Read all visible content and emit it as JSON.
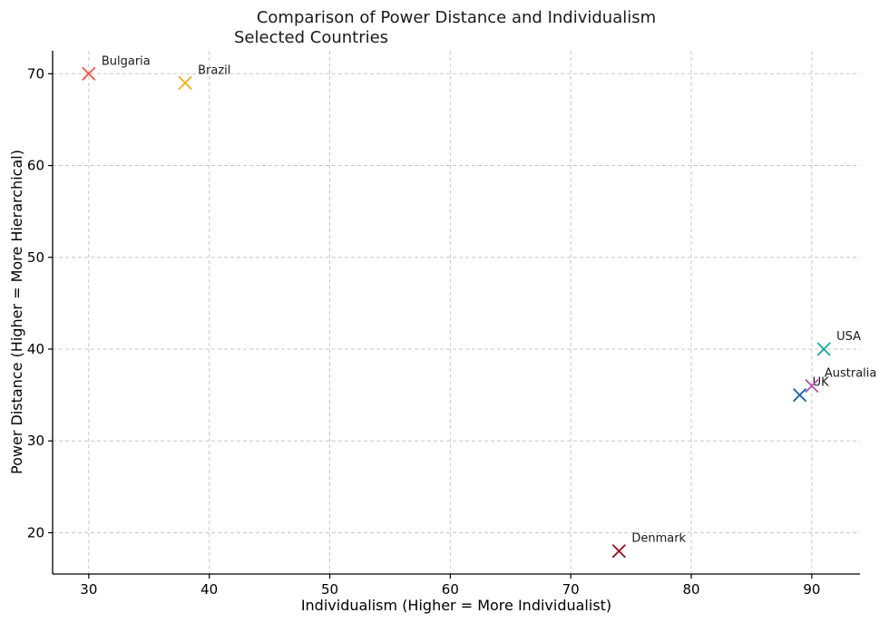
{
  "chart_data": {
    "type": "scatter",
    "title": "Comparison of Power Distance and Individualism",
    "subtitle": "Selected Countries",
    "xlabel": "Individualism (Higher = More Individualist)",
    "ylabel": "Power Distance (Higher = More Hierarchical)",
    "xlim": [
      27,
      94
    ],
    "ylim": [
      15.5,
      72.5
    ],
    "xticks": [
      30,
      40,
      50,
      60,
      70,
      80,
      90
    ],
    "yticks": [
      20,
      30,
      40,
      50,
      60,
      70
    ],
    "grid": true,
    "marker": "x",
    "points": [
      {
        "label": "Bulgaria",
        "x": 30,
        "y": 70,
        "color": "#f4584a"
      },
      {
        "label": "Brazil",
        "x": 38,
        "y": 69,
        "color": "#f0b21c"
      },
      {
        "label": "Denmark",
        "x": 74,
        "y": 18,
        "color": "#a0111d"
      },
      {
        "label": "UK",
        "x": 89,
        "y": 35,
        "color": "#1560a8"
      },
      {
        "label": "Australia",
        "x": 90,
        "y": 36,
        "color": "#b04fb2"
      },
      {
        "label": "USA",
        "x": 91,
        "y": 40,
        "color": "#1aa8a0"
      }
    ]
  }
}
